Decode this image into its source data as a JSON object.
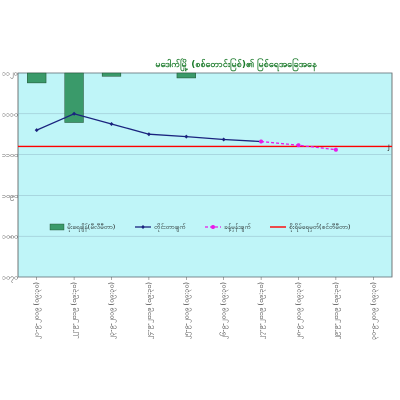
{
  "chart_data": {
    "type": "bar+line",
    "title": "မဒေါက်မြို့ (စစ်တောင်းမြစ်)၏ မြစ်ရေအခြေအနေ",
    "categories": [
      "၂၁-၉-၂၀၁၉ (၀၉:၃၀)",
      "၂၂-၉-၂၀၁၉ (၀၉:၃၀)",
      "၂၃-၉-၂၀၁၉ (၀၉:၃၀)",
      "၂၄-၉-၂၀၁၉ (၀၉:၃၀)",
      "၂၅-၉-၂၀၁၉ (၀၉:၃၀)",
      "၂၆-၉-၂၀၁၉ (၀၉:၃၀)",
      "၂၇-၉-၂၀၁၉ (၀၉:၃၀)",
      "၂၈-၉-၂၀၁၉ (၀၉:၃၀)",
      "၂၉-၉-၂၀၁၉ (၀၉:၃၀)",
      "၃၀-၉-၂၀၁၉ (၀၉:၃၀)"
    ],
    "yticks": [
      "၁၁၂၀",
      "၁၁၁၀",
      "၁၁၀၀",
      "၁၀၉၀",
      "၁၀၈၀",
      "၁၀၇၀"
    ],
    "ylim": [
      1070,
      1120
    ],
    "grid": true,
    "legend_position": "bottom-center",
    "series": [
      {
        "name": "မိုးရေချိန်(မီလီမီတာ)",
        "kind": "bar",
        "color": "#3a9a6a",
        "values": [
          3,
          15,
          1,
          null,
          1.5,
          null,
          null,
          null,
          null,
          null
        ]
      },
      {
        "name": "တိုင်းတာချက်",
        "kind": "line",
        "color": "#1a237e",
        "values": [
          1106,
          1110,
          1107.5,
          1105,
          1104.4,
          1103.7,
          1103.2,
          null,
          null,
          null
        ]
      },
      {
        "name": "ခန့်မှန်းချက်",
        "kind": "dashed",
        "color": "#e81ae8",
        "values": [
          null,
          null,
          null,
          null,
          null,
          null,
          1103.2,
          1102.3,
          1101.2,
          null
        ]
      },
      {
        "name": "စိုးရိမ်ရေမှတ်(စင်တီမီတာ)",
        "kind": "hline",
        "color": "#ff0000",
        "value": 1102
      }
    ],
    "danger_label": "J"
  }
}
